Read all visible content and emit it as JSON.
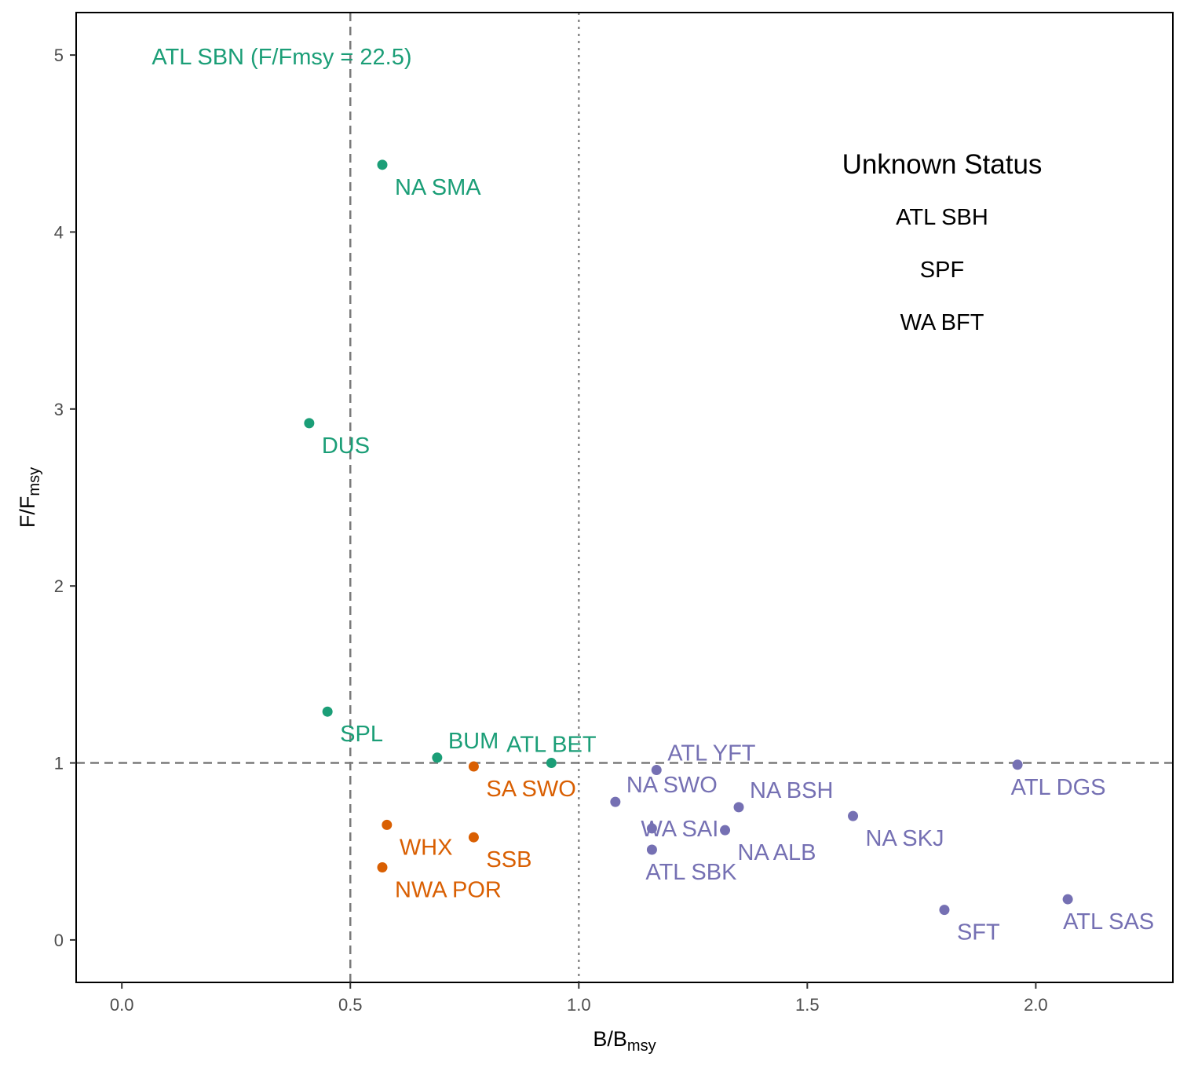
{
  "chart_data": {
    "type": "scatter",
    "xlabel": "B/B",
    "xlabel_sub": "msy",
    "ylabel": "F/F",
    "ylabel_sub": "msy",
    "xlim": [
      -0.1,
      2.3
    ],
    "ylim": [
      -0.24,
      5.24
    ],
    "x_ticks": [
      0.0,
      0.5,
      1.0,
      1.5,
      2.0
    ],
    "x_tick_labels": [
      "0.0",
      "0.5",
      "1.0",
      "1.5",
      "2.0"
    ],
    "y_ticks": [
      0,
      1,
      2,
      3,
      4,
      5
    ],
    "y_tick_labels": [
      "0",
      "1",
      "2",
      "3",
      "4",
      "5"
    ],
    "grid": false,
    "reference_lines": [
      {
        "axis": "x",
        "value": 0.5,
        "style": "dashed"
      },
      {
        "axis": "x",
        "value": 1.0,
        "style": "dotted"
      },
      {
        "axis": "y",
        "value": 1.0,
        "style": "dashed"
      }
    ],
    "colors": {
      "green": "#1b9e77",
      "orange": "#d95f02",
      "purple": "#7570b3"
    },
    "points": [
      {
        "label": "NA SMA",
        "x": 0.57,
        "y": 4.38,
        "color": "green",
        "label_pos": "below-right"
      },
      {
        "label": "DUS",
        "x": 0.41,
        "y": 2.92,
        "color": "green",
        "label_pos": "below-right"
      },
      {
        "label": "SPL",
        "x": 0.45,
        "y": 1.29,
        "color": "green",
        "label_pos": "below-right"
      },
      {
        "label": "BUM",
        "x": 0.69,
        "y": 1.03,
        "color": "green",
        "label_pos": "above-right"
      },
      {
        "label": "ATL BET",
        "x": 0.94,
        "y": 1.0,
        "color": "green",
        "label_pos": "above"
      },
      {
        "label": "SA SWO",
        "x": 0.77,
        "y": 0.98,
        "color": "orange",
        "label_pos": "below-right"
      },
      {
        "label": "WHX",
        "x": 0.58,
        "y": 0.65,
        "color": "orange",
        "label_pos": "below-right"
      },
      {
        "label": "SSB",
        "x": 0.77,
        "y": 0.58,
        "color": "orange",
        "label_pos": "below-right"
      },
      {
        "label": "NWA POR",
        "x": 0.57,
        "y": 0.41,
        "color": "orange",
        "label_pos": "below-right"
      },
      {
        "label": "ATL YFT",
        "x": 1.17,
        "y": 0.96,
        "color": "purple",
        "label_pos": "above-right"
      },
      {
        "label": "NA SWO",
        "x": 1.08,
        "y": 0.78,
        "color": "purple",
        "label_pos": "above-right"
      },
      {
        "label": "NA BSH",
        "x": 1.35,
        "y": 0.75,
        "color": "purple",
        "label_pos": "above-right"
      },
      {
        "label": "WA SAI",
        "x": 1.16,
        "y": 0.63,
        "color": "purple",
        "label_pos": "right"
      },
      {
        "label": "NA ALB",
        "x": 1.32,
        "y": 0.62,
        "color": "purple",
        "label_pos": "below-right"
      },
      {
        "label": "NA SKJ",
        "x": 1.6,
        "y": 0.7,
        "color": "purple",
        "label_pos": "below-right"
      },
      {
        "label": "ATL SBK",
        "x": 1.16,
        "y": 0.51,
        "color": "purple",
        "label_pos": "below"
      },
      {
        "label": "ATL DGS",
        "x": 1.96,
        "y": 0.99,
        "color": "purple",
        "label_pos": "below"
      },
      {
        "label": "SFT",
        "x": 1.8,
        "y": 0.17,
        "color": "purple",
        "label_pos": "below-right"
      },
      {
        "label": "ATL SAS",
        "x": 2.07,
        "y": 0.23,
        "color": "purple",
        "label_pos": "below"
      }
    ],
    "annotations": [
      {
        "text": "ATL SBN (F/Fmsy = 22.5)",
        "x": 0.35,
        "y": 5.0,
        "color": "green"
      }
    ],
    "unknown_status": {
      "title": "Unknown Status",
      "items": [
        "ATL SBH",
        "SPF",
        "WA BFT"
      ]
    }
  }
}
